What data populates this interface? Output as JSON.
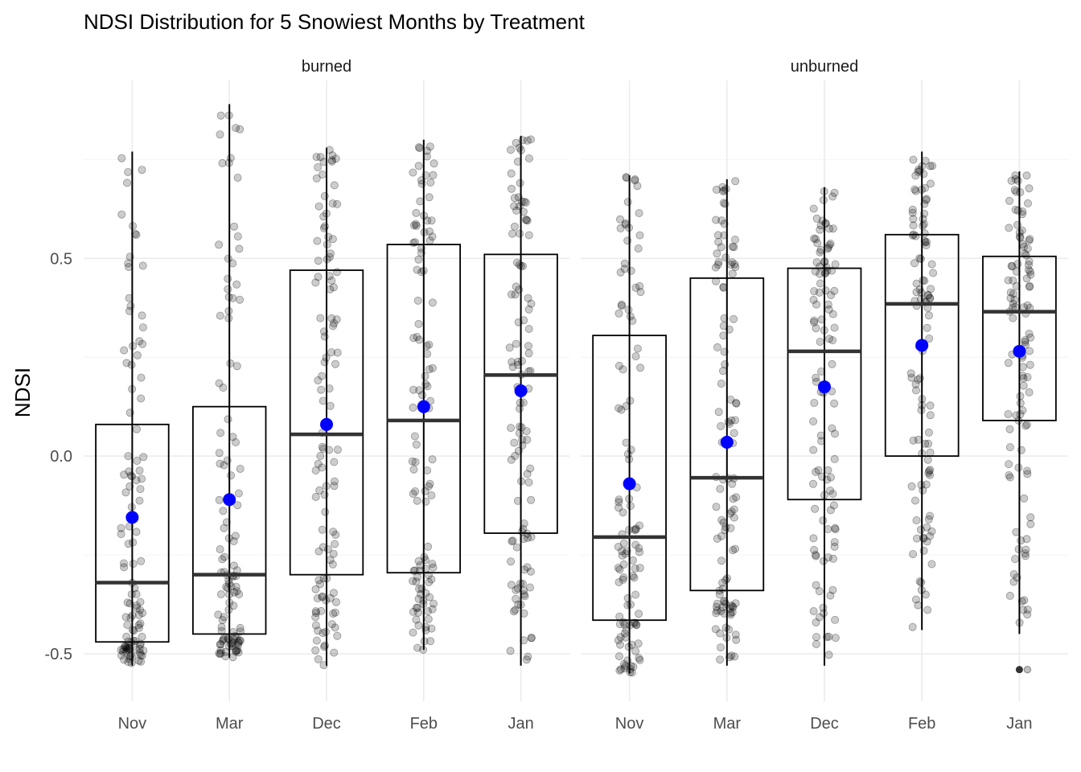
{
  "chart_data": {
    "type": "boxplot",
    "title": "NDSI Distribution for 5 Snowiest Months by Treatment",
    "xlabel": "",
    "ylabel": "NDSI",
    "ylim": [
      -0.62,
      0.95
    ],
    "yticks": [
      -0.5,
      0.0,
      0.5
    ],
    "ytick_labels": [
      "-0.5",
      "0.0",
      "0.5"
    ],
    "grid": true,
    "categories": [
      "Nov",
      "Mar",
      "Dec",
      "Feb",
      "Jan"
    ],
    "colors": {
      "box": "#000000",
      "median": "#333333",
      "mean": "#0000ff",
      "jitter": "#000000"
    },
    "panels": [
      {
        "name": "burned",
        "boxes": [
          {
            "month": "Nov",
            "min": -0.53,
            "q1": -0.47,
            "median": -0.32,
            "q3": 0.08,
            "max": 0.77,
            "mean": -0.155
          },
          {
            "month": "Mar",
            "min": -0.51,
            "q1": -0.45,
            "median": -0.3,
            "q3": 0.125,
            "max": 0.89,
            "mean": -0.11
          },
          {
            "month": "Dec",
            "min": -0.53,
            "q1": -0.3,
            "median": 0.055,
            "q3": 0.47,
            "max": 0.78,
            "mean": 0.08
          },
          {
            "month": "Feb",
            "min": -0.49,
            "q1": -0.295,
            "median": 0.09,
            "q3": 0.535,
            "max": 0.8,
            "mean": 0.125
          },
          {
            "month": "Jan",
            "min": -0.53,
            "q1": -0.195,
            "median": 0.205,
            "q3": 0.51,
            "max": 0.81,
            "mean": 0.165
          }
        ]
      },
      {
        "name": "unburned",
        "boxes": [
          {
            "month": "Nov",
            "min": -0.55,
            "q1": -0.415,
            "median": -0.205,
            "q3": 0.305,
            "max": 0.71,
            "mean": -0.07
          },
          {
            "month": "Mar",
            "min": -0.53,
            "q1": -0.34,
            "median": -0.055,
            "q3": 0.45,
            "max": 0.7,
            "mean": 0.035
          },
          {
            "month": "Dec",
            "min": -0.53,
            "q1": -0.11,
            "median": 0.265,
            "q3": 0.475,
            "max": 0.68,
            "mean": 0.175
          },
          {
            "month": "Feb",
            "min": -0.44,
            "q1": 0.0,
            "median": 0.385,
            "q3": 0.56,
            "max": 0.77,
            "mean": 0.28
          },
          {
            "month": "Jan",
            "min": -0.45,
            "q1": 0.09,
            "median": 0.365,
            "q3": 0.505,
            "max": 0.72,
            "mean": 0.265,
            "outliers": [
              -0.54
            ]
          }
        ]
      }
    ]
  }
}
